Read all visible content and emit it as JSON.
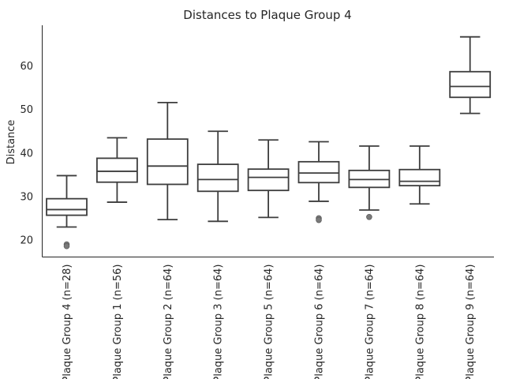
{
  "chart_data": {
    "type": "box",
    "title": "Distances to Plaque Group 4",
    "xlabel": "",
    "ylabel": "Distance",
    "ylim": [
      16,
      69
    ],
    "yticks": [
      20,
      30,
      40,
      50,
      60
    ],
    "grid": false,
    "categories": [
      "Plaque Group 4 (n=28)",
      "Plaque Group 1 (n=56)",
      "Plaque Group 2 (n=64)",
      "Plaque Group 3 (n=64)",
      "Plaque Group 5 (n=64)",
      "Plaque Group 6 (n=64)",
      "Plaque Group 7 (n=64)",
      "Plaque Group 8 (n=64)",
      "Plaque Group 9 (n=64)"
    ],
    "boxes": [
      {
        "whisker_low": 23.0,
        "q1": 25.7,
        "median": 27.0,
        "q3": 29.5,
        "whisker_high": 34.8,
        "fliers": [
          19.0,
          18.6
        ]
      },
      {
        "whisker_low": 28.7,
        "q1": 33.3,
        "median": 35.8,
        "q3": 38.8,
        "whisker_high": 43.5,
        "fliers": []
      },
      {
        "whisker_low": 24.7,
        "q1": 32.8,
        "median": 37.0,
        "q3": 43.2,
        "whisker_high": 51.6,
        "fliers": []
      },
      {
        "whisker_low": 24.3,
        "q1": 31.2,
        "median": 33.9,
        "q3": 37.4,
        "whisker_high": 45.0,
        "fliers": []
      },
      {
        "whisker_low": 25.2,
        "q1": 31.4,
        "median": 34.4,
        "q3": 36.3,
        "whisker_high": 43.0,
        "fliers": []
      },
      {
        "whisker_low": 28.9,
        "q1": 33.2,
        "median": 35.4,
        "q3": 38.0,
        "whisker_high": 42.6,
        "fliers": [
          25.0,
          24.6
        ]
      },
      {
        "whisker_low": 26.9,
        "q1": 32.1,
        "median": 33.9,
        "q3": 36.0,
        "whisker_high": 41.6,
        "fliers": [
          25.3
        ]
      },
      {
        "whisker_low": 28.3,
        "q1": 32.5,
        "median": 33.5,
        "q3": 36.2,
        "whisker_high": 41.6,
        "fliers": []
      },
      {
        "whisker_low": 49.1,
        "q1": 52.8,
        "median": 55.3,
        "q3": 58.7,
        "whisker_high": 66.7,
        "fliers": []
      }
    ],
    "colors": {
      "box_edge": "#3d3d3d",
      "box_fill": "#ffffff",
      "flier": "#7a7a7a",
      "axis": "#262626"
    }
  }
}
